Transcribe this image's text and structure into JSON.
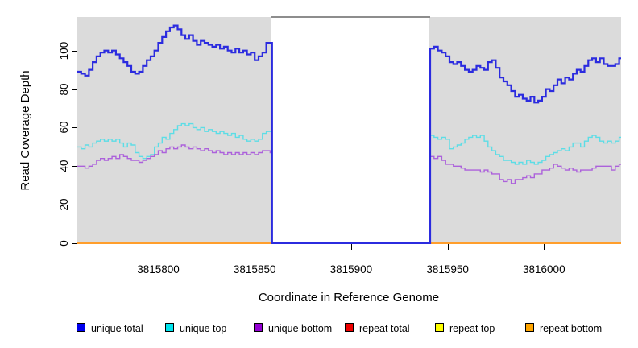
{
  "figure": {
    "xlabel": "Coordinate in Reference Genome",
    "ylabel": "Read Coverage Depth"
  },
  "legend": {
    "items": [
      {
        "label": "unique total",
        "color": "#0000EE"
      },
      {
        "label": "unique top",
        "color": "#00E5EE"
      },
      {
        "label": "unique bottom",
        "color": "#9400D3"
      },
      {
        "label": "repeat total",
        "color": "#EE0000"
      },
      {
        "label": "repeat top",
        "color": "#FFFF00"
      },
      {
        "label": "repeat bottom",
        "color": "#FFA500"
      }
    ]
  },
  "chart_data": {
    "type": "line",
    "style": "step",
    "title": "",
    "xlabel": "Coordinate in Reference Genome",
    "ylabel": "Read Coverage Depth",
    "xlim": [
      3815758,
      3816040
    ],
    "ylim": [
      0,
      118
    ],
    "x_ticks": [
      3815800,
      3815850,
      3815900,
      3815950,
      3816000
    ],
    "y_ticks": [
      0,
      20,
      40,
      60,
      80,
      100
    ],
    "grid": false,
    "legend_position": "bottom",
    "panel_background": "#dbdbdb",
    "no_data_region": {
      "x_start": 3815859,
      "x_end": 3815941,
      "coverage_in_region": 0
    },
    "sample_step_bp": 2,
    "series": [
      {
        "name": "repeat total",
        "color": "#EE0000",
        "line_width": 1.4,
        "zero_everywhere": true
      },
      {
        "name": "repeat top",
        "color": "#FFFF00",
        "line_width": 1.4,
        "zero_everywhere": true
      },
      {
        "name": "repeat bottom",
        "color": "#FFA500",
        "line_color": "#FF9E2C",
        "line_width": 2,
        "zero_everywhere": true
      },
      {
        "name": "unique top",
        "color": "#00E5EE",
        "line_color": "#5CDDE6",
        "line_width": 1.4,
        "x_start": 3815758,
        "dx": 2,
        "left_values": [
          50,
          49,
          51,
          50,
          52,
          53,
          54,
          53,
          54,
          53,
          54,
          52,
          50,
          52,
          51,
          47,
          45,
          44,
          45,
          46,
          50,
          52,
          55,
          54,
          57,
          59,
          61,
          62,
          61,
          62,
          60,
          59,
          60,
          58,
          59,
          58,
          57,
          58,
          57,
          56,
          57,
          55,
          56,
          54,
          53,
          54,
          53,
          54,
          57,
          58,
          58
        ],
        "right_x_start": 3815941,
        "right_values": [
          56,
          55,
          54,
          55,
          54,
          49,
          50,
          51,
          52,
          54,
          55,
          56,
          55,
          56,
          53,
          50,
          48,
          46,
          45,
          43,
          43,
          42,
          41,
          42,
          41,
          43,
          42,
          41,
          42,
          43,
          45,
          46,
          47,
          48,
          49,
          48,
          50,
          52,
          52,
          50,
          53,
          55,
          56,
          55,
          53,
          52,
          53,
          52,
          53,
          55,
          54
        ]
      },
      {
        "name": "unique bottom",
        "color": "#9400D3",
        "line_color": "#AC61DB",
        "line_width": 1.4,
        "x_start": 3815758,
        "dx": 2,
        "left_values": [
          40,
          40,
          39,
          40,
          41,
          43,
          44,
          43,
          44,
          45,
          44,
          46,
          45,
          44,
          43,
          43,
          42,
          43,
          44,
          45,
          46,
          48,
          47,
          49,
          50,
          49,
          50,
          51,
          50,
          49,
          50,
          49,
          48,
          49,
          48,
          47,
          48,
          47,
          46,
          47,
          46,
          47,
          46,
          47,
          46,
          47,
          46,
          47,
          48,
          48,
          47
        ],
        "right_x_start": 3815941,
        "right_values": [
          45,
          44,
          45,
          43,
          41,
          41,
          40,
          40,
          39,
          38,
          38,
          38,
          38,
          37,
          38,
          37,
          36,
          36,
          33,
          32,
          33,
          31,
          33,
          33,
          34,
          35,
          34,
          36,
          36,
          38,
          38,
          39,
          41,
          40,
          39,
          38,
          39,
          38,
          37,
          38,
          38,
          38,
          39,
          40,
          40,
          40,
          40,
          38,
          40,
          41,
          40
        ]
      },
      {
        "name": "unique total",
        "color": "#0000EE",
        "line_color": "#2B2BDF",
        "line_width": 2.2,
        "x_start": 3815758,
        "dx": 2,
        "left_values": [
          89,
          88,
          87,
          90,
          94,
          97,
          99,
          100,
          99,
          100,
          98,
          96,
          94,
          92,
          89,
          88,
          89,
          92,
          95,
          97,
          100,
          104,
          107,
          110,
          112,
          113,
          111,
          108,
          106,
          108,
          105,
          103,
          105,
          104,
          103,
          102,
          103,
          101,
          102,
          100,
          99,
          101,
          99,
          100,
          98,
          99,
          95,
          97,
          99,
          104,
          104
        ],
        "right_x_start": 3815941,
        "right_values": [
          101,
          102,
          100,
          99,
          97,
          94,
          93,
          94,
          92,
          90,
          89,
          90,
          92,
          91,
          90,
          94,
          95,
          91,
          86,
          84,
          82,
          79,
          76,
          77,
          75,
          74,
          76,
          73,
          74,
          76,
          80,
          79,
          82,
          85,
          83,
          86,
          85,
          88,
          90,
          89,
          92,
          95,
          96,
          94,
          96,
          93,
          92,
          92,
          93,
          96,
          93
        ]
      }
    ]
  }
}
